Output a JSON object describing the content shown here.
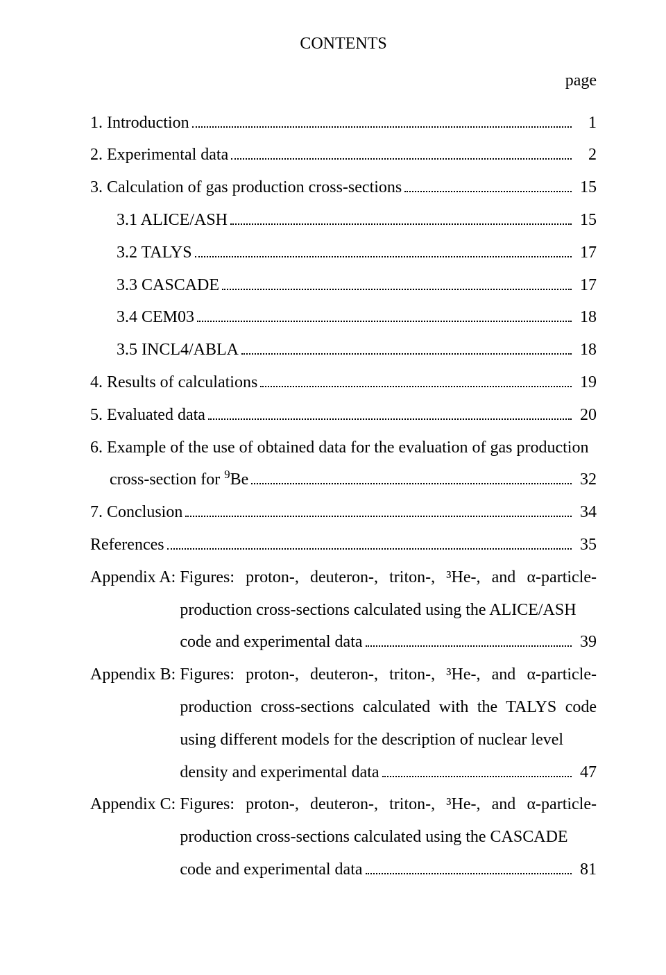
{
  "title": "CONTENTS",
  "page_label": "page",
  "entries": {
    "s1": {
      "label": "1. Introduction",
      "page": "1"
    },
    "s2": {
      "label": "2. Experimental data",
      "page": "2"
    },
    "s3": {
      "label": "3. Calculation of gas production cross-sections",
      "page": "15"
    },
    "s31": {
      "label": "3.1 ALICE/ASH",
      "page": "15"
    },
    "s32": {
      "label": "3.2 TALYS",
      "page": "17"
    },
    "s33": {
      "label": "3.3 CASCADE",
      "page": "17"
    },
    "s34": {
      "label": "3.4 CEM03",
      "page": "18"
    },
    "s35": {
      "label": "3.5 INCL4/ABLA",
      "page": "18"
    },
    "s4": {
      "label": "4. Results of calculations",
      "page": "19"
    },
    "s5": {
      "label": "5. Evaluated data",
      "page": "20"
    },
    "s6_l1": "6. Example of the use of obtained data for the evaluation of gas production",
    "s6_l2": "cross-section for ",
    "s6_isotope_sup": "9",
    "s6_isotope": "Be",
    "s6_page": "32",
    "s7": {
      "label": "7. Conclusion",
      "page": "34"
    },
    "refs": {
      "label": "References",
      "page": "35"
    },
    "appA_prefix": "Appendix A: ",
    "appA_body": "Figures: proton-, deuteron-, triton-, ³He-, and α-particle-production cross-sections calculated using the ALICE/ASH",
    "appA_last": "code and experimental data",
    "appA_page": "39",
    "appB_prefix": "Appendix B: ",
    "appB_body": "Figures: proton-, deuteron-, triton-, ³He-, and α-particle-production cross-sections calculated with the TALYS code using different models for the description of nuclear level",
    "appB_last": "density and experimental data",
    "appB_page": "47",
    "appC_prefix": "Appendix C: ",
    "appC_body": "Figures: proton-, deuteron-, triton-, ³He-, and α-particle-production cross-sections calculated using the CASCADE",
    "appC_last": "code and experimental data",
    "appC_page": "81"
  }
}
